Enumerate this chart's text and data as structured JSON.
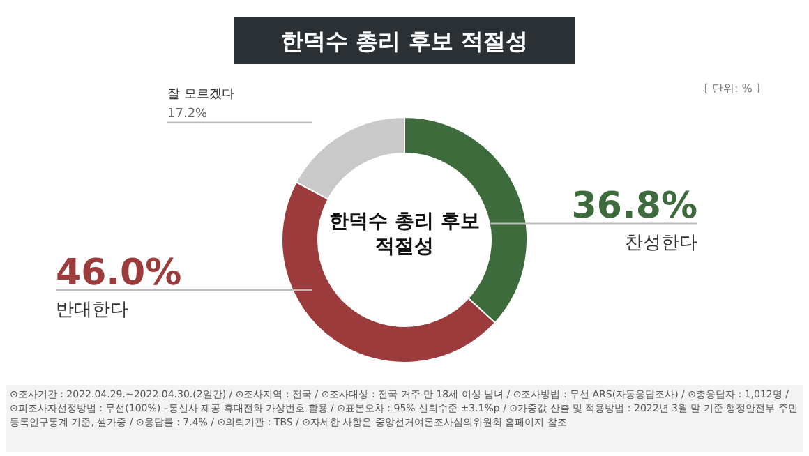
{
  "chart_data": {
    "type": "donut",
    "title": "한덕수 총리 후보 적절성",
    "categories": [
      "찬성한다",
      "반대한다",
      "잘 모르겠다"
    ],
    "values": [
      36.8,
      46.0,
      17.2
    ],
    "value_labels": [
      "36.8%",
      "46.0%",
      "17.2%"
    ],
    "colors": [
      "#3e6b3b",
      "#9c3b3c",
      "#c9c9c9"
    ],
    "annotations": [
      "한덕수 총리 후보 적절성",
      "[ 단위: % ]",
      "⊙조사기간 : 2022.04.29.~2022.04.30.(2일간) / ⊙조사지역 : 전국 / ⊙조사대상 : 전국 거주 만 18세 이상 남녀 / ⊙조사방법 : 무선 ARS(자동응답조사) / ⊙총응답자 : 1,012명 / ⊙피조사자선정방법 : 무선(100%) –통신사 제공 휴대전화 가상번호 활용 / ⊙표본오차 : 95% 신뢰수준 ±3.1%p / ⊙가중값 산출 및 적용방법 : 2022년 3월 말 기준 행정안전부 주민등록인구통계 기준, 셀가중 / ⊙응답률 : 7.4% / ⊙의뢰기관 : TBS / ⊙자세한 사항은 중앙선거여론조사심의위원회 홈페이지 참조"
    ]
  }
}
